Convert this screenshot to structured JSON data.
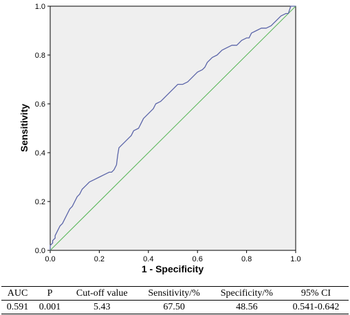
{
  "chart_data": {
    "type": "line",
    "xlabel": "1 - Specificity",
    "ylabel": "Sensitivity",
    "xlim": [
      0,
      1
    ],
    "ylim": [
      0,
      1
    ],
    "ticks": [
      "0.0",
      "0.2",
      "0.4",
      "0.6",
      "0.8",
      "1.0"
    ],
    "grid": false,
    "legend": "none",
    "series": [
      {
        "color": "#5a64a8",
        "x": [
          0,
          0,
          0.01,
          0.01,
          0.02,
          0.02,
          0.03,
          0.04,
          0.05,
          0.06,
          0.07,
          0.08,
          0.09,
          0.1,
          0.11,
          0.12,
          0.13,
          0.14,
          0.15,
          0.16,
          0.18,
          0.2,
          0.22,
          0.24,
          0.25,
          0.26,
          0.27,
          0.275,
          0.28,
          0.29,
          0.3,
          0.32,
          0.33,
          0.34,
          0.36,
          0.37,
          0.38,
          0.4,
          0.42,
          0.43,
          0.45,
          0.46,
          0.48,
          0.5,
          0.52,
          0.54,
          0.56,
          0.58,
          0.6,
          0.62,
          0.63,
          0.64,
          0.66,
          0.68,
          0.7,
          0.72,
          0.74,
          0.76,
          0.78,
          0.8,
          0.81,
          0.82,
          0.84,
          0.86,
          0.88,
          0.9,
          0.91,
          0.92,
          0.94,
          0.96,
          0.97,
          0.98,
          1.0
        ],
        "y": [
          0,
          0.02,
          0.03,
          0.04,
          0.05,
          0.06,
          0.08,
          0.1,
          0.11,
          0.13,
          0.15,
          0.17,
          0.18,
          0.2,
          0.22,
          0.23,
          0.25,
          0.26,
          0.27,
          0.28,
          0.29,
          0.3,
          0.31,
          0.32,
          0.32,
          0.33,
          0.35,
          0.39,
          0.42,
          0.43,
          0.44,
          0.46,
          0.47,
          0.49,
          0.5,
          0.52,
          0.54,
          0.56,
          0.58,
          0.6,
          0.61,
          0.62,
          0.64,
          0.66,
          0.68,
          0.68,
          0.69,
          0.71,
          0.73,
          0.74,
          0.75,
          0.77,
          0.79,
          0.8,
          0.82,
          0.83,
          0.84,
          0.84,
          0.86,
          0.87,
          0.87,
          0.89,
          0.9,
          0.91,
          0.91,
          0.92,
          0.93,
          0.94,
          0.96,
          0.97,
          0.97,
          1.0,
          1.0
        ]
      },
      {
        "color": "#5cb85c",
        "x": [
          0,
          1
        ],
        "y": [
          0,
          1
        ]
      }
    ]
  },
  "table": {
    "headers": [
      "AUC",
      "P",
      "Cut-off value",
      "Sensitivity/%",
      "Specificity/%",
      "95% CI"
    ],
    "values": [
      "0.591",
      "0.001",
      "5.43",
      "67.50",
      "48.56",
      "0.541-0.642"
    ]
  }
}
